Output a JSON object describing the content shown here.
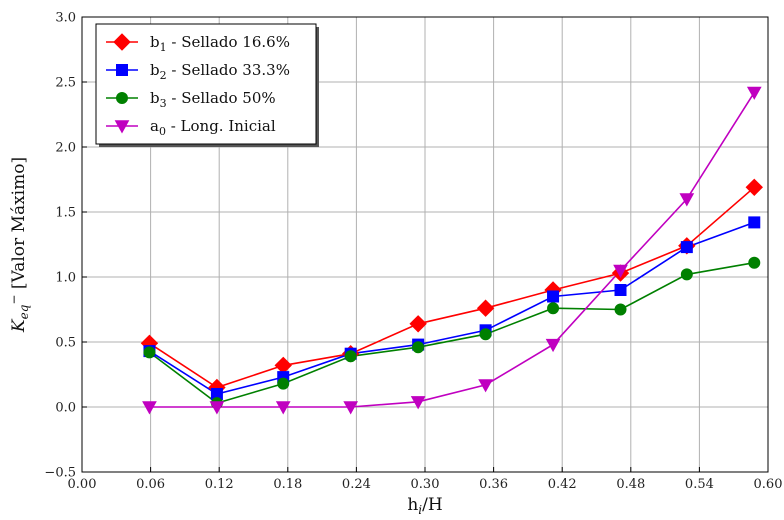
{
  "chart_data": {
    "type": "line",
    "xlabel": "h_i/H",
    "ylabel": "K_eq- [Valor Máximo]",
    "xlim": [
      0.0,
      0.6
    ],
    "ylim": [
      -0.5,
      3.0
    ],
    "xticks": [
      "0.00",
      "0.06",
      "0.12",
      "0.18",
      "0.24",
      "0.30",
      "0.36",
      "0.42",
      "0.48",
      "0.54",
      "0.60"
    ],
    "yticks": [
      "−0.5",
      "0.0",
      "0.5",
      "1.0",
      "1.5",
      "2.0",
      "2.5",
      "3.0"
    ],
    "grid": true,
    "legend_position": "top-left",
    "x": [
      0.059,
      0.118,
      0.176,
      0.235,
      0.294,
      0.353,
      0.412,
      0.471,
      0.529,
      0.588
    ],
    "series": [
      {
        "name": "b1 - Sellado 16.6%",
        "legend_main": "b",
        "legend_sub": "1",
        "legend_rest": " - Sellado 16.6%",
        "color": "#ff0000",
        "marker": "diamond",
        "values": [
          0.49,
          0.15,
          0.32,
          0.41,
          0.64,
          0.76,
          0.9,
          1.03,
          1.24,
          1.69
        ]
      },
      {
        "name": "b2 - Sellado 33.3%",
        "legend_main": "b",
        "legend_sub": "2",
        "legend_rest": " - Sellado 33.3%",
        "color": "#0000ff",
        "marker": "square",
        "values": [
          0.43,
          0.1,
          0.23,
          0.41,
          0.48,
          0.59,
          0.85,
          0.9,
          1.23,
          1.42
        ]
      },
      {
        "name": "b3 - Sellado 50%",
        "legend_main": "b",
        "legend_sub": "3",
        "legend_rest": " - Sellado 50%",
        "color": "#008000",
        "marker": "circle",
        "values": [
          0.42,
          0.03,
          0.18,
          0.39,
          0.46,
          0.56,
          0.76,
          0.75,
          1.02,
          1.11
        ]
      },
      {
        "name": "a0 - Long. Inicial",
        "legend_main": "a",
        "legend_sub": "0",
        "legend_rest": " - Long. Inicial",
        "color": "#c000c0",
        "marker": "triangle-down",
        "values": [
          0.0,
          0.0,
          0.0,
          0.0,
          0.04,
          0.17,
          0.48,
          1.05,
          1.6,
          2.42
        ]
      }
    ]
  }
}
